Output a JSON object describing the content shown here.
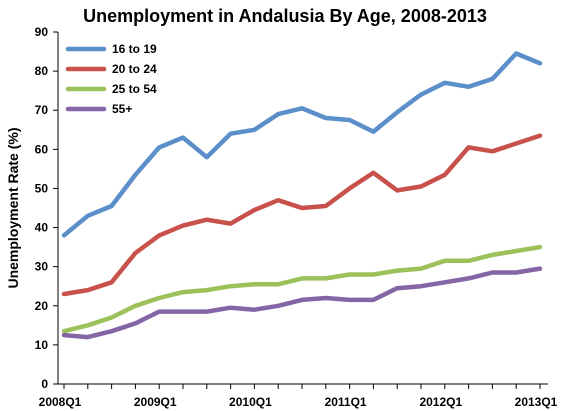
{
  "chart_data": {
    "type": "line",
    "title": "Unemployment in Andalusia By Age, 2008-2013",
    "xlabel": "",
    "ylabel": "Unemployment Rate (%)",
    "ylim": [
      0,
      90
    ],
    "yticks": [
      0,
      10,
      20,
      30,
      40,
      50,
      60,
      70,
      80,
      90
    ],
    "grid": false,
    "legend_position": "top-left",
    "x": [
      "2008Q1",
      "2008Q2",
      "2008Q3",
      "2008Q4",
      "2009Q1",
      "2009Q2",
      "2009Q3",
      "2009Q4",
      "2010Q1",
      "2010Q2",
      "2010Q3",
      "2010Q4",
      "2011Q1",
      "2011Q2",
      "2011Q3",
      "2011Q4",
      "2012Q1",
      "2012Q2",
      "2012Q3",
      "2012Q4",
      "2013Q1"
    ],
    "x_tick_labels": [
      "2008Q1",
      "2009Q1",
      "2010Q1",
      "2011Q1",
      "2012Q1",
      "2013Q1"
    ],
    "series": [
      {
        "name": "16 to 19",
        "color": "#5b8fc9",
        "values": [
          38,
          43,
          45.5,
          53.5,
          60.5,
          63,
          58,
          64,
          65,
          69,
          70.5,
          68,
          67.5,
          64.5,
          69.5,
          74,
          77,
          76,
          78,
          84.5,
          82
        ]
      },
      {
        "name": "20 to 24",
        "color": "#c9514b",
        "values": [
          23,
          24,
          26,
          33.5,
          38,
          40.5,
          42,
          41,
          44.5,
          47,
          45,
          45.5,
          50,
          54,
          49.5,
          50.5,
          53.5,
          60.5,
          59.5,
          61.5,
          63.5
        ]
      },
      {
        "name": "25 to 54",
        "color": "#9dc15a",
        "values": [
          13.5,
          15,
          17,
          20,
          22,
          23.5,
          24,
          25,
          25.5,
          25.5,
          27,
          27,
          28,
          28,
          29,
          29.5,
          31.5,
          31.5,
          33,
          34,
          35
        ]
      },
      {
        "name": "55+",
        "color": "#8466a6",
        "values": [
          12.5,
          12,
          13.5,
          15.5,
          18.5,
          18.5,
          18.5,
          19.5,
          19,
          20,
          21.5,
          22,
          21.5,
          21.5,
          24.5,
          25,
          26,
          27,
          28.5,
          28.5,
          29.5
        ]
      }
    ]
  }
}
